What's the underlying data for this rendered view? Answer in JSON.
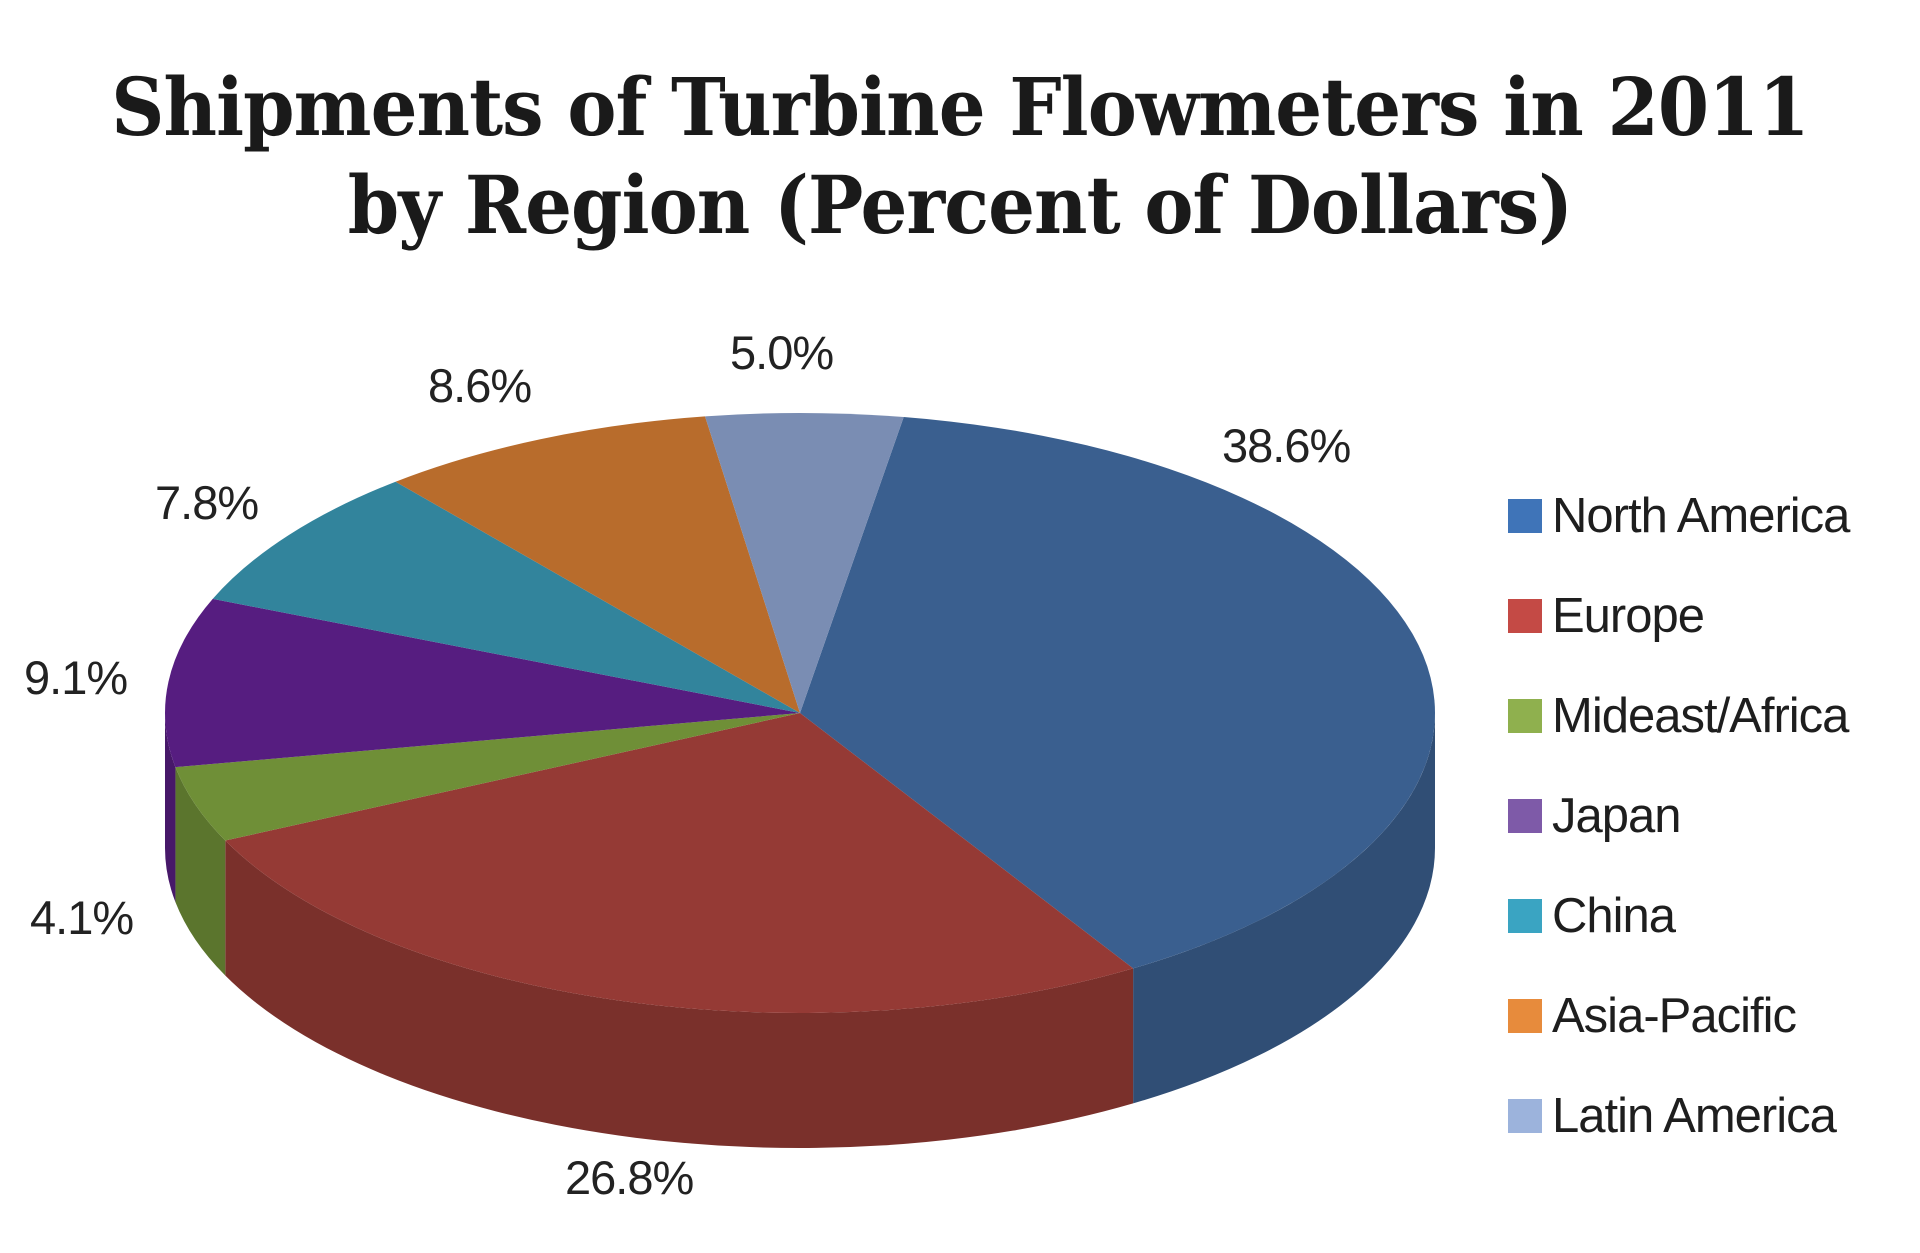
{
  "title_line1": "Shipments of Turbine Flowmeters in 2011",
  "title_line2": "by Region (Percent of Dollars)",
  "chart_data": {
    "type": "pie",
    "title": "Shipments of Turbine Flowmeters in 2011 by Region (Percent of Dollars)",
    "style": "3d",
    "legend_position": "right",
    "categories": [
      "North America",
      "Europe",
      "Mideast/Africa",
      "Japan",
      "China",
      "Asia-Pacific",
      "Latin America"
    ],
    "values": [
      38.6,
      26.8,
      4.1,
      9.1,
      7.8,
      8.6,
      5.0
    ],
    "labels": [
      "38.6%",
      "26.8%",
      "4.1%",
      "9.1%",
      "7.8%",
      "8.6%",
      "5.0%"
    ],
    "colors": [
      "#3a5f8f",
      "#953a35",
      "#6f8f37",
      "#561d80",
      "#32849c",
      "#b86c2c",
      "#7a8db3"
    ],
    "legend_colors": [
      "#3f74b8",
      "#c44a45",
      "#8fb04e",
      "#7e5aa8",
      "#3aa4c2",
      "#e78b3c",
      "#9cb3dc"
    ]
  },
  "legend": [
    {
      "label": "North America"
    },
    {
      "label": "Europe"
    },
    {
      "label": "Mideast/Africa"
    },
    {
      "label": "Japan"
    },
    {
      "label": "China"
    },
    {
      "label": "Asia-Pacific"
    },
    {
      "label": "Latin America"
    }
  ],
  "data_labels": {
    "north_america": "38.6%",
    "europe": "26.8%",
    "mideast_africa": "4.1%",
    "japan": "9.1%",
    "china": "7.8%",
    "asia_pacific": "8.6%",
    "latin_america": "5.0%"
  }
}
